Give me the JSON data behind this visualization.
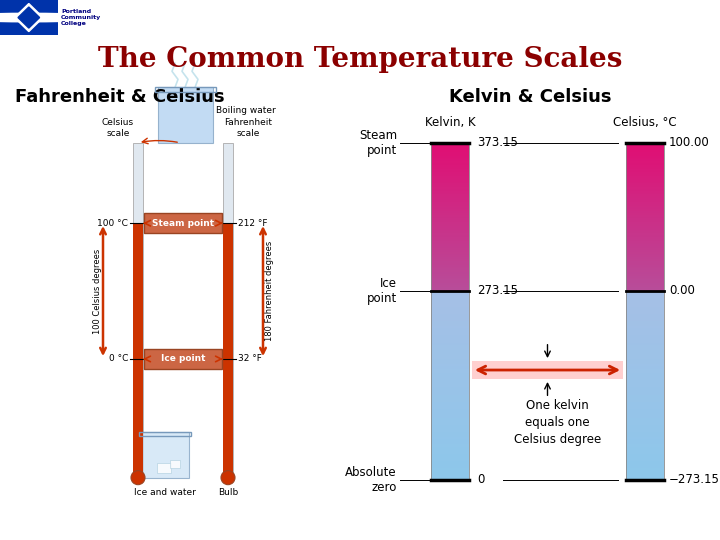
{
  "title": "The Common Temperature Scales",
  "title_color": "#8B0000",
  "subtitle_left": "Fahrenheit & Celsius",
  "subtitle_right": "Kelvin & Celsius",
  "bg_color": "#FFFFFF",
  "header_bar_color": "#DD0077",
  "kelvin_col_label": "Kelvin, K",
  "celsius_col_label": "Celsius, °C",
  "steam_point_kelvin": "373.15",
  "steam_point_celsius": "100.00",
  "ice_point_kelvin": "273.15",
  "ice_point_celsius": "0.00",
  "abs_zero_kelvin": "0",
  "abs_zero_celsius": "−273.15",
  "label_steam": "Steam\npoint",
  "label_ice": "Ice\npoint",
  "label_abs_zero": "Absolute\nzero",
  "annotation_text": "One kelvin\nequals one\nCelsius degree",
  "arrow_color": "#CC2200",
  "celsius_scale_label": "Celsius\nscale",
  "fahrenheit_scale_label": "Fahrenheit\nscale",
  "boiling_water_label": "Boiling water",
  "steam_label": "Steam point",
  "ice_label": "Ice point",
  "ice_water_label": "Ice and water",
  "bulb_label": "Bulb",
  "temp_100c": "100 °C",
  "temp_212f": "212 °F",
  "temp_0c": "0 °C",
  "temp_32f": "32 °F",
  "celsius_degrees": "100 Celsius degrees",
  "fahrenheit_degrees": "180 Fahrenheit degrees"
}
